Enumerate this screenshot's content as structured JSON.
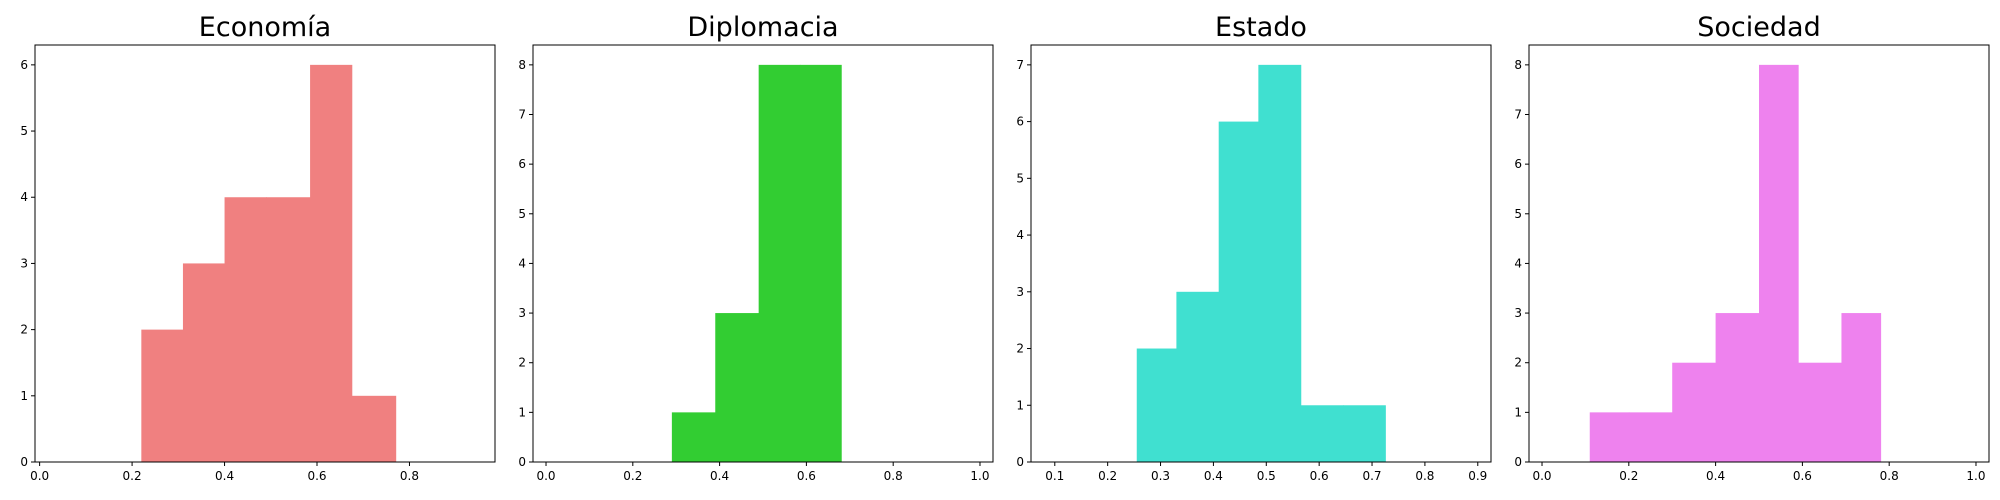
{
  "chart_data": [
    {
      "type": "bar",
      "title": "Economía",
      "color": "#f08080",
      "xlim": [
        -0.01,
        0.985
      ],
      "ylim": [
        0,
        6.3
      ],
      "xticks": [
        0.0,
        0.2,
        0.4,
        0.6,
        0.8
      ],
      "xtick_labels": [
        "0.0",
        "0.2",
        "0.4",
        "0.6",
        "0.8"
      ],
      "yticks": [
        0,
        1,
        2,
        3,
        4,
        5,
        6
      ],
      "ytick_labels": [
        "0",
        "1",
        "2",
        "3",
        "4",
        "5",
        "6"
      ],
      "bins": [
        {
          "x0": 0.22,
          "x1": 0.31,
          "count": 2
        },
        {
          "x0": 0.31,
          "x1": 0.4,
          "count": 3
        },
        {
          "x0": 0.4,
          "x1": 0.49,
          "count": 4
        },
        {
          "x0": 0.49,
          "x1": 0.585,
          "count": 4
        },
        {
          "x0": 0.585,
          "x1": 0.675,
          "count": 6
        },
        {
          "x0": 0.675,
          "x1": 0.77,
          "count": 1
        }
      ]
    },
    {
      "type": "bar",
      "title": "Diplomacia",
      "color": "#32cd32",
      "xlim": [
        -0.03,
        1.03
      ],
      "ylim": [
        0,
        8.4
      ],
      "xticks": [
        0.0,
        0.2,
        0.4,
        0.6,
        0.8,
        1.0
      ],
      "xtick_labels": [
        "0.0",
        "0.2",
        "0.4",
        "0.6",
        "0.8",
        "1.0"
      ],
      "yticks": [
        0,
        1,
        2,
        3,
        4,
        5,
        6,
        7,
        8
      ],
      "ytick_labels": [
        "0",
        "1",
        "2",
        "3",
        "4",
        "5",
        "6",
        "7",
        "8"
      ],
      "bins": [
        {
          "x0": 0.29,
          "x1": 0.39,
          "count": 1
        },
        {
          "x0": 0.39,
          "x1": 0.49,
          "count": 3
        },
        {
          "x0": 0.49,
          "x1": 0.585,
          "count": 8
        },
        {
          "x0": 0.585,
          "x1": 0.68,
          "count": 8
        }
      ]
    },
    {
      "type": "bar",
      "title": "Estado",
      "color": "#40e0d0",
      "xlim": [
        0.055,
        0.925
      ],
      "ylim": [
        0,
        7.35
      ],
      "xticks": [
        0.1,
        0.2,
        0.3,
        0.4,
        0.5,
        0.6,
        0.7,
        0.8,
        0.9
      ],
      "xtick_labels": [
        "0.1",
        "0.2",
        "0.3",
        "0.4",
        "0.5",
        "0.6",
        "0.7",
        "0.8",
        "0.9"
      ],
      "yticks": [
        0,
        1,
        2,
        3,
        4,
        5,
        6,
        7
      ],
      "ytick_labels": [
        "0",
        "1",
        "2",
        "3",
        "4",
        "5",
        "6",
        "7"
      ],
      "bins": [
        {
          "x0": 0.255,
          "x1": 0.33,
          "count": 2
        },
        {
          "x0": 0.33,
          "x1": 0.41,
          "count": 3
        },
        {
          "x0": 0.41,
          "x1": 0.485,
          "count": 6
        },
        {
          "x0": 0.485,
          "x1": 0.565,
          "count": 7
        },
        {
          "x0": 0.565,
          "x1": 0.645,
          "count": 1
        },
        {
          "x0": 0.645,
          "x1": 0.725,
          "count": 1
        }
      ]
    },
    {
      "type": "bar",
      "title": "Sociedad",
      "color": "#ee82ee",
      "xlim": [
        -0.03,
        1.03
      ],
      "ylim": [
        0,
        8.4
      ],
      "xticks": [
        0.0,
        0.2,
        0.4,
        0.6,
        0.8,
        1.0
      ],
      "xtick_labels": [
        "0.0",
        "0.2",
        "0.4",
        "0.6",
        "0.8",
        "1.0"
      ],
      "yticks": [
        0,
        1,
        2,
        3,
        4,
        5,
        6,
        7,
        8
      ],
      "ytick_labels": [
        "0",
        "1",
        "2",
        "3",
        "4",
        "5",
        "6",
        "7",
        "8"
      ],
      "bins": [
        {
          "x0": 0.11,
          "x1": 0.2,
          "count": 1
        },
        {
          "x0": 0.2,
          "x1": 0.3,
          "count": 1
        },
        {
          "x0": 0.3,
          "x1": 0.4,
          "count": 2
        },
        {
          "x0": 0.4,
          "x1": 0.5,
          "count": 3
        },
        {
          "x0": 0.5,
          "x1": 0.59,
          "count": 8
        },
        {
          "x0": 0.59,
          "x1": 0.69,
          "count": 2
        },
        {
          "x0": 0.69,
          "x1": 0.78,
          "count": 3
        }
      ]
    }
  ]
}
